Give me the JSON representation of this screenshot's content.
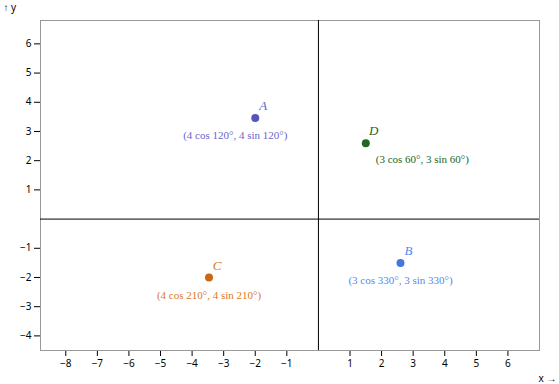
{
  "chart_data": {
    "type": "scatter",
    "xlabel": "x",
    "ylabel": "y",
    "points": [
      {
        "label": "A",
        "x": -2,
        "y": 3.464101615137755,
        "annotation": "(4 cos 120°, 4 sin 120°)",
        "color": "#6666cc",
        "dot_color": "#5555bb"
      },
      {
        "label": "B",
        "x": 2.598076211353316,
        "y": -1.5,
        "annotation": "(3 cos 330°, 3 sin 330°)",
        "color": "#5588ee",
        "dot_color": "#4477dd"
      },
      {
        "label": "C",
        "x": -3.464101615137755,
        "y": -2,
        "annotation": "(4 cos 210°, 4 sin 210°)",
        "color": "#dd7722",
        "dot_color": "#cc6611"
      },
      {
        "label": "D",
        "x": 1.5,
        "y": 2.598076211353316,
        "annotation": "(3 cos 60°, 3 sin 60°)",
        "color": "#226622",
        "dot_color": "#226622"
      }
    ],
    "xlim": [
      -8.8,
      7.0
    ],
    "ylim": [
      -4.5,
      6.8
    ],
    "xticks": [
      -8,
      -7,
      -6,
      -5,
      -4,
      -3,
      -2,
      -1,
      1,
      2,
      3,
      4,
      5,
      6
    ],
    "yticks": [
      -4,
      -3,
      -2,
      -1,
      1,
      2,
      3,
      4,
      5,
      6
    ]
  }
}
